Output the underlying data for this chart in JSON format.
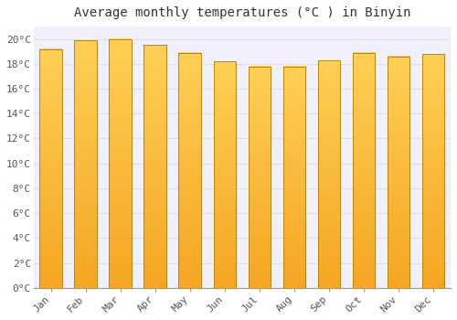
{
  "title": "Average monthly temperatures (°C ) in Binyin",
  "months": [
    "Jan",
    "Feb",
    "Mar",
    "Apr",
    "May",
    "Jun",
    "Jul",
    "Aug",
    "Sep",
    "Oct",
    "Nov",
    "Dec"
  ],
  "values": [
    19.2,
    19.9,
    20.0,
    19.5,
    18.9,
    18.2,
    17.8,
    17.8,
    18.3,
    18.9,
    18.6,
    18.8
  ],
  "bar_color_bottom": "#F5A623",
  "bar_color_top": "#FFD055",
  "bar_edge_color": "#B8860B",
  "background_color": "#FFFFFF",
  "plot_bg_color": "#F0F0FF",
  "grid_color": "#DDDDEE",
  "title_fontsize": 10,
  "tick_fontsize": 8,
  "ylim": [
    0,
    21
  ],
  "yticks": [
    0,
    2,
    4,
    6,
    8,
    10,
    12,
    14,
    16,
    18,
    20
  ]
}
